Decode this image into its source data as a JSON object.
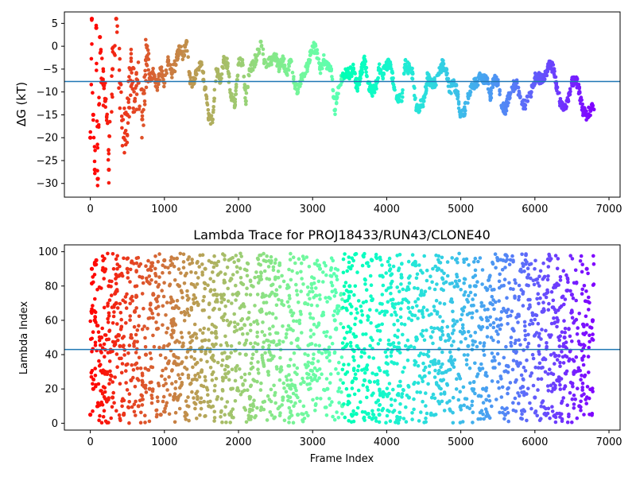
{
  "chart_data": [
    {
      "type": "scatter",
      "title": "",
      "xlabel": "",
      "ylabel": "ΔG (kT)",
      "xlim": [
        -350,
        7150
      ],
      "ylim": [
        -33,
        7.5
      ],
      "xticks": [
        0,
        1000,
        2000,
        3000,
        4000,
        5000,
        6000,
        7000
      ],
      "yticks": [
        5,
        0,
        -5,
        -10,
        -15,
        -20,
        -25,
        -30
      ],
      "colormap": "rainbow (red at frame 0 to violet at frame ~6800)",
      "hline": -7.7,
      "hline_color": "#1f77b4",
      "grid": false,
      "series": [
        {
          "x": [
            0,
            20,
            40,
            60,
            80,
            100,
            130,
            160,
            200,
            250,
            300,
            350,
            400,
            450,
            500,
            550,
            600,
            650,
            700,
            750,
            800,
            850,
            900,
            950,
            1000,
            1050,
            1100,
            1150,
            1200,
            1250,
            1300,
            1350,
            1400,
            1450,
            1500,
            1550,
            1600,
            1650,
            1700,
            1750,
            1800,
            1850,
            1900,
            1950,
            2000,
            2050,
            2100,
            2150,
            2200,
            2250,
            2300,
            2350,
            2400,
            2450,
            2500,
            2550,
            2600,
            2650,
            2700,
            2750,
            2800,
            2850,
            2900,
            2950,
            3000,
            3050,
            3100,
            3150,
            3200,
            3250,
            3300,
            3350,
            3400,
            3450,
            3500,
            3550,
            3600,
            3650,
            3700,
            3750,
            3800,
            3850,
            3900,
            3950,
            4000,
            4050,
            4100,
            4150,
            4200,
            4250,
            4300,
            4350,
            4400,
            4450,
            4500,
            4550,
            4600,
            4650,
            4700,
            4750,
            4800,
            4850,
            4900,
            4950,
            5000,
            5050,
            5100,
            5150,
            5200,
            5250,
            5300,
            5350,
            5400,
            5450,
            5500,
            5550,
            5600,
            5650,
            5700,
            5750,
            5800,
            5850,
            5900,
            5950,
            6000,
            6050,
            6100,
            6150,
            6200,
            6250,
            6300,
            6350,
            6400,
            6450,
            6500,
            6550,
            6600,
            6650,
            6700,
            6750,
            6780
          ],
          "y": [
            -20,
            6,
            -15,
            -27,
            4,
            -29,
            2,
            -8,
            -12,
            -27,
            -5,
            6,
            -8,
            -20,
            -15,
            -5,
            -12,
            -8,
            -16,
            -3,
            -7,
            -6,
            -9,
            -5,
            -8,
            -3,
            -6,
            -4,
            0,
            -2,
            1,
            -8,
            -8,
            -5,
            -4,
            -9,
            -16,
            -16,
            -5,
            -8,
            -3,
            -4,
            -11,
            -13,
            -4,
            -3,
            -12,
            -5,
            -4,
            -2,
            1,
            -3,
            -4,
            -3,
            -2,
            -5,
            -3,
            -6,
            -3,
            -8,
            -10,
            -7,
            -6,
            -3,
            0,
            -1,
            -5,
            -3,
            -4,
            -5,
            -14,
            -9,
            -7,
            -6,
            -6,
            -5,
            -9,
            -6,
            -3,
            -8,
            -10,
            -9,
            -5,
            -6,
            -4,
            -4,
            -9,
            -11,
            -12,
            -4,
            -5,
            -6,
            -14,
            -13,
            -12,
            -7,
            -8,
            -8,
            -6,
            -4,
            -5,
            -10,
            -8,
            -10,
            -15,
            -14,
            -11,
            -9,
            -8,
            -7,
            -7,
            -7,
            -11,
            -7,
            -8,
            -13,
            -14,
            -11,
            -9,
            -8,
            -11,
            -13,
            -12,
            -10,
            -7,
            -7,
            -7,
            -6,
            -4,
            -5,
            -9,
            -13,
            -13,
            -12,
            -8,
            -7,
            -10,
            -14,
            -15,
            -14,
            -13
          ]
        }
      ]
    },
    {
      "type": "scatter",
      "title": "Lambda Trace for PROJ18433/RUN43/CLONE40",
      "xlabel": "Frame Index",
      "ylabel": "Lambda Index",
      "xlim": [
        -350,
        7150
      ],
      "ylim": [
        -4,
        104
      ],
      "xticks": [
        0,
        1000,
        2000,
        3000,
        4000,
        5000,
        6000,
        7000
      ],
      "yticks": [
        0,
        20,
        40,
        60,
        80,
        100
      ],
      "colormap": "rainbow (red at frame 0 to violet at frame ~6800)",
      "hline": 43,
      "hline_color": "#1f77b4",
      "grid": false,
      "series": [
        {
          "x": [
            0,
            20,
            40,
            60,
            80,
            100,
            150,
            200,
            250,
            300,
            350,
            400,
            450,
            500,
            550,
            600,
            650,
            700,
            750,
            800,
            850,
            900,
            950,
            1000,
            1050,
            1100,
            1150,
            1200,
            1250,
            1300,
            1400,
            1500,
            1550,
            1600,
            1700,
            1800,
            1900,
            2000,
            2100,
            2200,
            2300,
            2400,
            2500,
            2600,
            2700,
            2800,
            2900,
            3000,
            3100,
            3200,
            3300,
            3400,
            3500,
            3600,
            3700,
            3800,
            3900,
            4000,
            4100,
            4200,
            4300,
            4400,
            4500,
            4600,
            4700,
            4800,
            4900,
            5000,
            5100,
            5200,
            5300,
            5400,
            5500,
            5600,
            5700,
            5800,
            5900,
            6000,
            6100,
            6200,
            6300,
            6400,
            6500,
            6600,
            6700,
            6780
          ],
          "y": [
            5,
            90,
            20,
            60,
            95,
            10,
            50,
            30,
            80,
            15,
            70,
            45,
            5,
            90,
            25,
            65,
            10,
            85,
            40,
            20,
            75,
            55,
            5,
            95,
            35,
            60,
            15,
            80,
            45,
            5,
            70,
            30,
            90,
            10,
            50,
            75,
            20,
            95,
            40,
            10,
            65,
            30,
            85,
            15,
            55,
            5,
            70,
            35,
            90,
            20,
            60,
            10,
            80,
            45,
            25,
            95,
            5,
            65,
            35,
            85,
            15,
            50,
            75,
            5,
            90,
            30,
            60,
            10,
            45,
            80,
            20,
            70,
            95,
            5,
            55,
            35,
            85,
            15,
            65,
            95,
            25,
            50,
            75,
            10,
            90,
            60
          ]
        }
      ]
    }
  ]
}
